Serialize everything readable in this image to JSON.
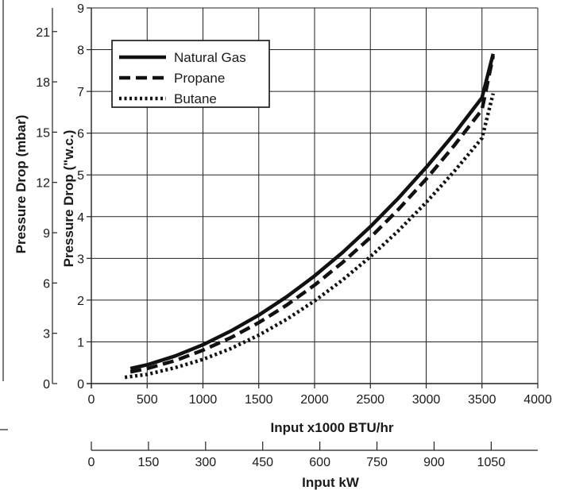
{
  "chart_data": {
    "type": "line",
    "title": "",
    "xlabel": "Input x1000 BTU/hr",
    "ylabel": "Pressure Drop (\"w.c.)",
    "ylabel_secondary": "Pressure Drop (mbar)",
    "xlabel_secondary": "Input kW",
    "xlim": [
      0,
      4000
    ],
    "ylim": [
      0,
      9
    ],
    "x_ticks": [
      0,
      500,
      1000,
      1500,
      2000,
      2500,
      3000,
      3500,
      4000
    ],
    "y_ticks": [
      1,
      2,
      3,
      4,
      5,
      6,
      7,
      8,
      9
    ],
    "y_tick_labels": [
      "1",
      "2",
      "3",
      "4",
      "5",
      "6",
      "7",
      "8",
      "9"
    ],
    "y_zero_label": "0",
    "x_tick_labels": [
      "0",
      "500",
      "1000",
      "1500",
      "2000",
      "2500",
      "3000",
      "3500",
      "4000"
    ],
    "mbar_ticks": [
      0,
      3,
      6,
      9,
      12,
      15,
      18,
      21
    ],
    "mbar_tick_labels": [
      "0",
      "3",
      "6",
      "9",
      "12",
      "15",
      "18",
      "21"
    ],
    "mbar_per_wc": 2.49,
    "kw_ticks": [
      0,
      150,
      300,
      450,
      600,
      750,
      900,
      1050
    ],
    "kw_tick_labels": [
      "0",
      "150",
      "300",
      "450",
      "600",
      "750",
      "900",
      "1050"
    ],
    "btu_per_kw": 3.412,
    "grid": true,
    "legend_position": "top-left",
    "series": [
      {
        "name": "Natural Gas",
        "style": "solid",
        "x": [
          350,
          500,
          750,
          1000,
          1250,
          1500,
          1750,
          2000,
          2250,
          2500,
          2750,
          3000,
          3250,
          3500,
          3600
        ],
        "y": [
          0.36,
          0.45,
          0.66,
          0.93,
          1.26,
          1.64,
          2.08,
          2.58,
          3.14,
          3.76,
          4.44,
          5.18,
          5.98,
          6.85,
          7.9
        ]
      },
      {
        "name": "Propane",
        "style": "dashed",
        "x": [
          350,
          500,
          750,
          1000,
          1250,
          1500,
          1750,
          2000,
          2250,
          2500,
          2750,
          3000,
          3250,
          3500,
          3600
        ],
        "y": [
          0.28,
          0.36,
          0.55,
          0.8,
          1.1,
          1.46,
          1.88,
          2.36,
          2.9,
          3.5,
          4.17,
          4.9,
          5.7,
          6.56,
          7.85
        ]
      },
      {
        "name": "Butane",
        "style": "dotted",
        "x": [
          300,
          500,
          750,
          1000,
          1250,
          1500,
          1750,
          2000,
          2250,
          2500,
          2750,
          3000,
          3250,
          3500,
          3600
        ],
        "y": [
          0.15,
          0.22,
          0.38,
          0.58,
          0.84,
          1.16,
          1.54,
          1.98,
          2.48,
          3.04,
          3.66,
          4.34,
          5.08,
          5.88,
          6.95
        ]
      }
    ]
  }
}
